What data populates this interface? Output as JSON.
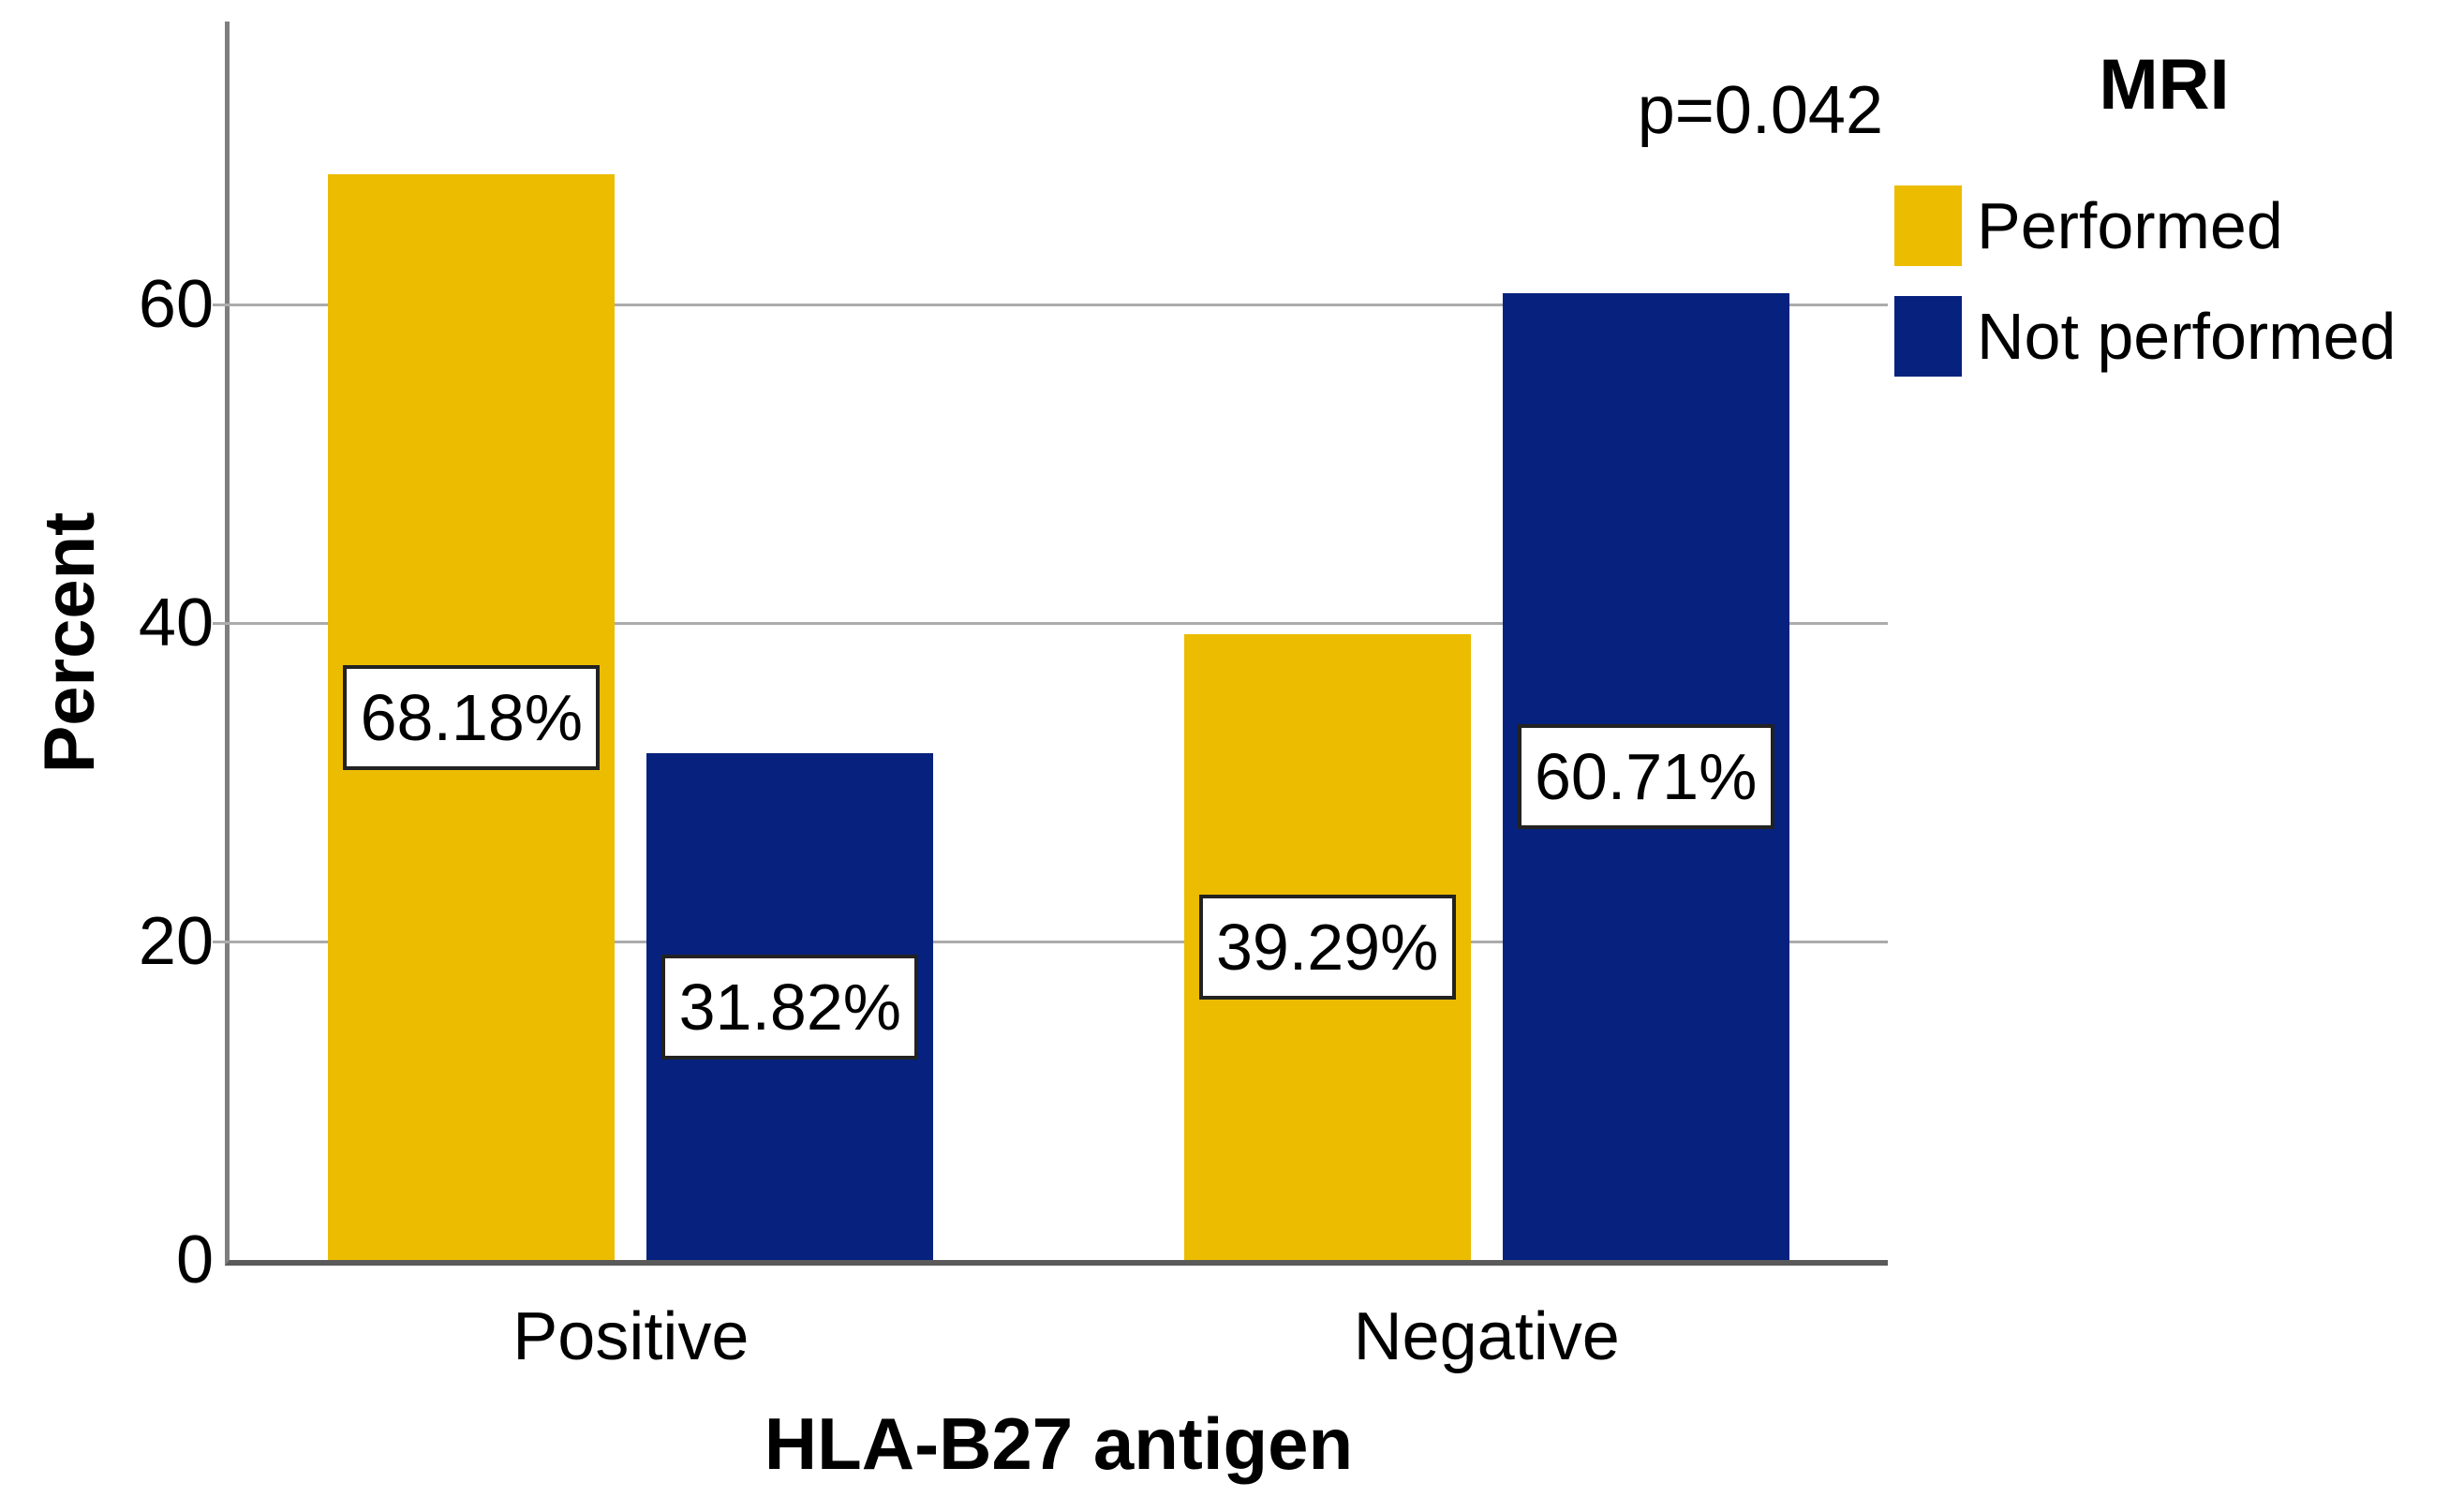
{
  "figure": {
    "annotation": "p=0.042"
  },
  "chart_data": {
    "type": "bar",
    "title": "",
    "categories": [
      "Positive",
      "Negative"
    ],
    "series": [
      {
        "name": "Performed",
        "color": "#ebbc00",
        "values": [
          68.18,
          39.29
        ]
      },
      {
        "name": "Not performed",
        "color": "#06217e",
        "values": [
          31.82,
          60.71
        ]
      }
    ],
    "bar_value_labels": [
      [
        "68.18%",
        "31.82%"
      ],
      [
        "39.29%",
        "60.71%"
      ]
    ],
    "xlabel": "HLA-B27 antigen",
    "ylabel": "Percent",
    "yticks": [
      0,
      20,
      40,
      60
    ],
    "ylim": [
      0,
      77.8
    ],
    "grid": true,
    "gridline_color": "#ababab",
    "axis_color": "#7e7e7e",
    "legend_title": "MRI",
    "legend_position": "top-right",
    "annotation": "p=0.042"
  }
}
